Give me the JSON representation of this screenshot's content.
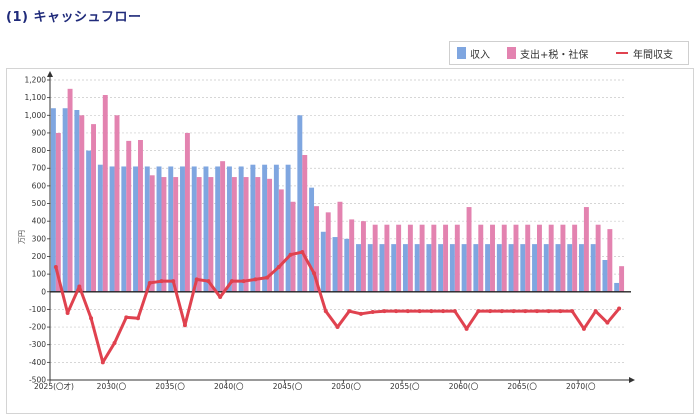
{
  "page": {
    "title": "(1) キャッシュフロー"
  },
  "legend": {
    "items": [
      {
        "label": "収入",
        "color": "#7fa6e0",
        "kind": "bar"
      },
      {
        "label": "支出+税・社保",
        "color": "#e383b0",
        "kind": "bar"
      },
      {
        "label": "年間収支",
        "color": "#e0424f",
        "kind": "line"
      }
    ]
  },
  "chart_data": {
    "type": "bar",
    "ylabel": "万円",
    "ylim": [
      -500,
      1200
    ],
    "yticks": [
      -500,
      -400,
      -300,
      -200,
      -100,
      0,
      100,
      200,
      300,
      400,
      500,
      600,
      700,
      800,
      900,
      1000,
      1100,
      1200
    ],
    "ytick_labels": [
      "-500",
      "-400",
      "-300",
      "-200",
      "-100",
      "0",
      "100",
      "200",
      "300",
      "400",
      "500",
      "600",
      "700",
      "800",
      "900",
      "1,000",
      "1,100",
      "1,200"
    ],
    "grid": true,
    "legend_position": "top-right",
    "x": [
      2025,
      2026,
      2027,
      2028,
      2029,
      2030,
      2031,
      2032,
      2033,
      2034,
      2035,
      2036,
      2037,
      2038,
      2039,
      2040,
      2041,
      2042,
      2043,
      2044,
      2045,
      2046,
      2047,
      2048,
      2049,
      2050,
      2051,
      2052,
      2053,
      2054,
      2055,
      2056,
      2057,
      2058,
      2059,
      2060,
      2061,
      2062,
      2063,
      2064,
      2065,
      2066,
      2067,
      2068,
      2069,
      2070,
      2071,
      2072,
      2073
    ],
    "x_tick_labels": [
      {
        "year": 2025,
        "label": "2025(〇才)"
      },
      {
        "year": 2030,
        "label": "2030(〇"
      },
      {
        "year": 2035,
        "label": "2035(〇"
      },
      {
        "year": 2040,
        "label": "2040(〇"
      },
      {
        "year": 2045,
        "label": "2045(〇"
      },
      {
        "year": 2050,
        "label": "2050(〇"
      },
      {
        "year": 2055,
        "label": "2055(〇"
      },
      {
        "year": 2060,
        "label": "2060(〇"
      },
      {
        "year": 2065,
        "label": "2065(〇"
      },
      {
        "year": 2070,
        "label": "2070(〇"
      }
    ],
    "series": [
      {
        "name": "収入",
        "color": "#7fa6e0",
        "values": [
          1040,
          1040,
          1030,
          800,
          720,
          710,
          710,
          710,
          710,
          710,
          710,
          710,
          710,
          710,
          710,
          710,
          710,
          720,
          720,
          720,
          720,
          1000,
          590,
          340,
          310,
          300,
          270,
          270,
          270,
          270,
          270,
          270,
          270,
          270,
          270,
          270,
          270,
          270,
          270,
          270,
          270,
          270,
          270,
          270,
          270,
          270,
          270,
          180,
          50
        ]
      },
      {
        "name": "支出+税・社保",
        "color": "#e383b0",
        "values": [
          900,
          1150,
          1000,
          950,
          1115,
          1000,
          855,
          860,
          660,
          650,
          650,
          900,
          650,
          650,
          740,
          650,
          650,
          650,
          640,
          580,
          510,
          775,
          485,
          450,
          510,
          410,
          400,
          380,
          380,
          380,
          380,
          380,
          380,
          380,
          380,
          480,
          380,
          380,
          380,
          380,
          380,
          380,
          380,
          380,
          380,
          480,
          380,
          355,
          145
        ]
      },
      {
        "name": "年間収支",
        "color": "#e0424f",
        "type": "line",
        "values": [
          140,
          -120,
          30,
          -150,
          -400,
          -290,
          -145,
          -150,
          50,
          60,
          60,
          -190,
          70,
          60,
          -30,
          60,
          60,
          70,
          80,
          140,
          210,
          225,
          105,
          -110,
          -200,
          -110,
          -125,
          -115,
          -110,
          -110,
          -110,
          -110,
          -110,
          -110,
          -110,
          -210,
          -110,
          -110,
          -110,
          -110,
          -110,
          -110,
          -110,
          -110,
          -110,
          -210,
          -110,
          -175,
          -95
        ]
      }
    ]
  }
}
